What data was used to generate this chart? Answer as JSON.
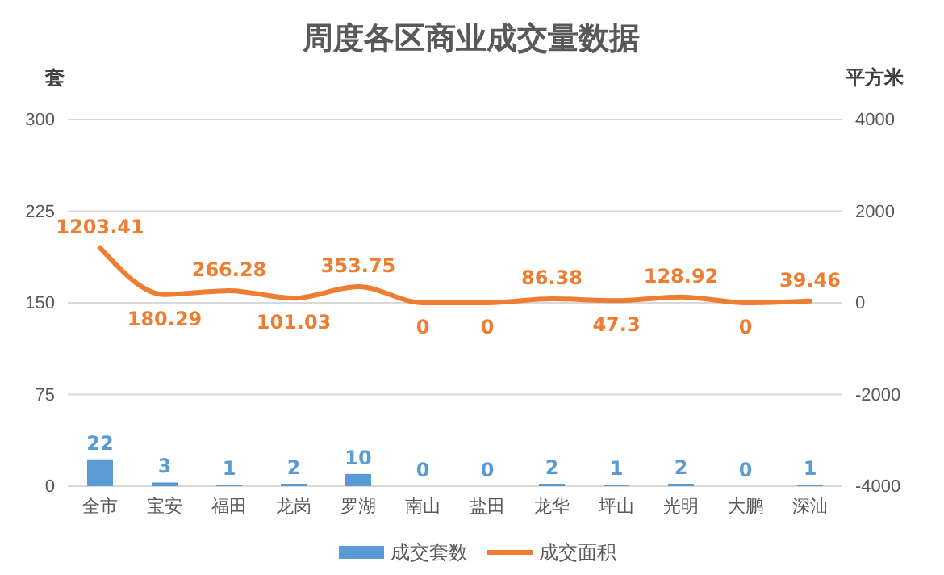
{
  "chart_data": {
    "type": "bar",
    "title": "周度各区商业成交量数据",
    "ylabel": "套",
    "y2label": "平方米",
    "categories": [
      "全市",
      "宝安",
      "福田",
      "龙岗",
      "罗湖",
      "南山",
      "盐田",
      "龙华",
      "坪山",
      "光明",
      "大鹏",
      "深汕"
    ],
    "series": [
      {
        "name": "成交套数",
        "color": "#5b9bd5",
        "values": [
          22,
          3,
          1,
          2,
          10,
          0,
          0,
          2,
          1,
          2,
          0,
          1
        ]
      },
      {
        "name": "成交面积",
        "type": "line",
        "axis": "y2",
        "color": "#ed7d31",
        "values": [
          1203.41,
          180.29,
          266.28,
          101.03,
          353.75,
          0,
          0,
          86.38,
          47.3,
          128.92,
          0,
          39.46
        ]
      }
    ],
    "ylim": [
      0,
      300
    ],
    "yticks": [
      0,
      75,
      150,
      225,
      300
    ],
    "y2lim": [
      -4000,
      4000
    ],
    "y2ticks": [
      -4000,
      -2000,
      0,
      2000,
      4000
    ],
    "grid": "y",
    "legend": "bottom",
    "data_labels": true,
    "marker": "none"
  }
}
